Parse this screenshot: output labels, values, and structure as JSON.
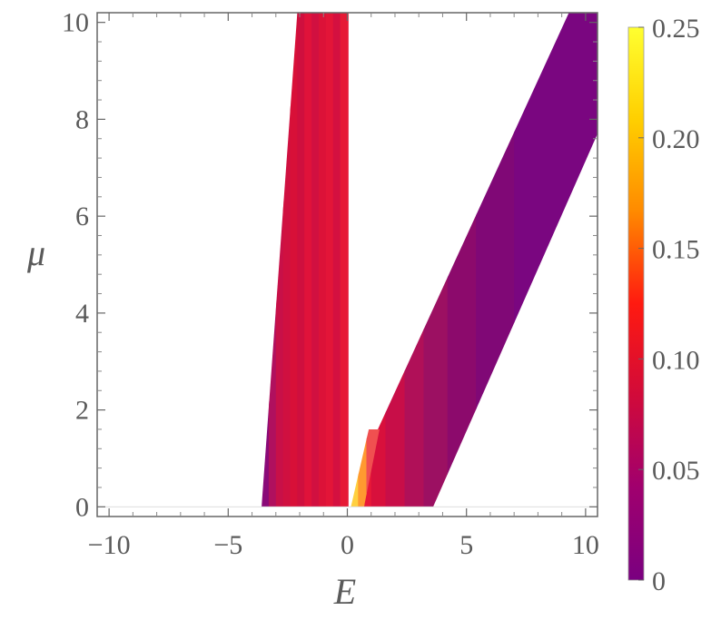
{
  "chart_data": {
    "type": "heatmap",
    "xlabel": "E",
    "ylabel": "μ",
    "xlim": [
      -10.5,
      10.5
    ],
    "ylim": [
      -0.2,
      10.2
    ],
    "x_ticks": [
      {
        "value": -10,
        "label": "−10"
      },
      {
        "value": -5,
        "label": "−5"
      },
      {
        "value": 0,
        "label": "0"
      },
      {
        "value": 5,
        "label": "5"
      },
      {
        "value": 10,
        "label": "10"
      }
    ],
    "y_ticks": [
      {
        "value": 0,
        "label": "0"
      },
      {
        "value": 2,
        "label": "2"
      },
      {
        "value": 4,
        "label": "4"
      },
      {
        "value": 6,
        "label": "6"
      },
      {
        "value": 8,
        "label": "8"
      },
      {
        "value": 10,
        "label": "10"
      }
    ],
    "colorbar": {
      "range": [
        0,
        0.25
      ],
      "ticks": [
        {
          "value": 0,
          "label": "0"
        },
        {
          "value": 0.05,
          "label": "0.05"
        },
        {
          "value": 0.1,
          "label": "0.10"
        },
        {
          "value": 0.15,
          "label": "0.15"
        },
        {
          "value": 0.2,
          "label": "0.20"
        },
        {
          "value": 0.25,
          "label": "0.25"
        }
      ],
      "colors": [
        "#7a0080",
        "#a0006e",
        "#d10a3a",
        "#ff1a10",
        "#ff8a00",
        "#ffcf00",
        "#ffff30"
      ]
    },
    "bands": [
      {
        "name": "left band",
        "polygon": [
          [
            -3.6,
            0.0
          ],
          [
            -2.1,
            10.2
          ],
          [
            0.05,
            10.2
          ],
          [
            0.05,
            0.0
          ]
        ],
        "colors": [
          {
            "e_start": -3.6,
            "color": "#8a0a78"
          },
          {
            "e_start": -3.3,
            "color": "#b0105e"
          },
          {
            "e_start": -3.0,
            "color": "#c81048"
          },
          {
            "e_start": -2.7,
            "color": "#d01040"
          },
          {
            "e_start": -2.4,
            "color": "#d81038"
          },
          {
            "e_start": -2.1,
            "color": "#cf0f3e"
          },
          {
            "e_start": -1.8,
            "color": "#e0123a"
          },
          {
            "e_start": -1.5,
            "color": "#d11040"
          },
          {
            "e_start": -1.2,
            "color": "#dc1238"
          },
          {
            "e_start": -0.9,
            "color": "#e31538"
          },
          {
            "e_start": -0.6,
            "color": "#d41040"
          },
          {
            "e_start": -0.3,
            "color": "#e61a35"
          }
        ]
      },
      {
        "name": "right band",
        "polygon": [
          [
            0.7,
            0.0
          ],
          [
            3.6,
            0.0
          ],
          [
            10.5,
            7.7
          ],
          [
            10.5,
            10.2
          ],
          [
            9.3,
            10.2
          ],
          [
            1.0,
            1.3
          ]
        ],
        "colors": [
          {
            "e_start": 0.6,
            "color": "#e81838"
          },
          {
            "e_start": 1.0,
            "color": "#d8103c"
          },
          {
            "e_start": 1.6,
            "color": "#c80e48"
          },
          {
            "e_start": 2.4,
            "color": "#b01058"
          },
          {
            "e_start": 3.2,
            "color": "#9c1062"
          },
          {
            "e_start": 4.2,
            "color": "#8c0a6c"
          },
          {
            "e_start": 5.4,
            "color": "#800876"
          },
          {
            "e_start": 7.0,
            "color": "#7a0680"
          }
        ]
      },
      {
        "name": "central hot strip",
        "polygon": [
          [
            0.15,
            0.0
          ],
          [
            0.7,
            0.0
          ],
          [
            1.35,
            1.6
          ],
          [
            0.9,
            1.6
          ]
        ],
        "colors": [
          {
            "e_start": 0.15,
            "color": "#ffd040"
          },
          {
            "e_start": 0.45,
            "color": "#ff9a30"
          },
          {
            "e_start": 0.8,
            "color": "#f05050"
          }
        ]
      }
    ]
  }
}
